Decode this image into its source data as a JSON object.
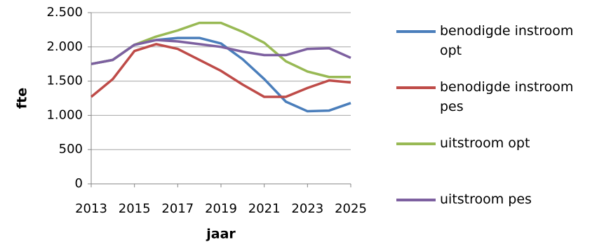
{
  "chart_data": {
    "type": "line",
    "x_label": "jaar",
    "y_label": "fte",
    "x": [
      2013,
      2014,
      2015,
      2016,
      2017,
      2018,
      2019,
      2020,
      2021,
      2022,
      2023,
      2024,
      2025
    ],
    "series": [
      {
        "name": "benodigde instroom opt",
        "color": "#4a7ebb",
        "values": [
          1750,
          1810,
          2030,
          2100,
          2130,
          2130,
          2050,
          1820,
          1530,
          1200,
          1060,
          1070,
          1180
        ]
      },
      {
        "name": "benodigde instroom pes",
        "color": "#be4b48",
        "values": [
          1270,
          1530,
          1940,
          2040,
          1970,
          1810,
          1650,
          1450,
          1270,
          1270,
          1400,
          1510,
          1480
        ]
      },
      {
        "name": "uitstroom opt",
        "color": "#98b954",
        "values": [
          1750,
          1810,
          2030,
          2150,
          2240,
          2350,
          2350,
          2220,
          2060,
          1790,
          1640,
          1560,
          1560
        ]
      },
      {
        "name": "uitstroom pes",
        "color": "#7d60a0",
        "values": [
          1750,
          1810,
          2030,
          2100,
          2080,
          2040,
          2000,
          1930,
          1880,
          1880,
          1970,
          1980,
          1840
        ]
      }
    ],
    "xlim": [
      2013,
      2025
    ],
    "xticks": [
      2013,
      2015,
      2017,
      2019,
      2021,
      2023,
      2025
    ],
    "ylim": [
      0,
      2500
    ],
    "yticks": [
      0,
      500,
      {
        "value": 1000,
        "label": "1.000"
      },
      {
        "value": 1500,
        "label": "1.500"
      },
      {
        "value": 2000,
        "label": "2.000"
      },
      {
        "value": 2500,
        "label": "2.500"
      }
    ],
    "grid": true,
    "legend": "right"
  }
}
